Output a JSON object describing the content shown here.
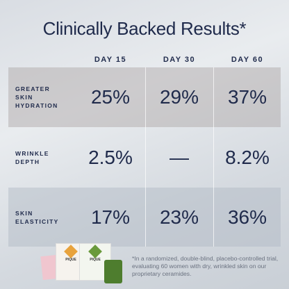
{
  "header": {
    "title": "Clinically Backed Results*"
  },
  "table": {
    "columns": [
      "DAY 15",
      "DAY 30",
      "DAY 60"
    ],
    "rows": [
      {
        "label": [
          "GREATER",
          "SKIN",
          "HYDRATION"
        ],
        "values": [
          "25%",
          "29%",
          "37%"
        ]
      },
      {
        "label": [
          "WRINKLE",
          "DEPTH"
        ],
        "values": [
          "2.5%",
          "—",
          "8.2%"
        ]
      },
      {
        "label": [
          "SKIN",
          "ELASTICITY"
        ],
        "values": [
          "17%",
          "23%",
          "36%"
        ]
      }
    ]
  },
  "product": {
    "brand": "PIQUE"
  },
  "footnote": "*In a randomized, double-blind, placebo-controlled trial, evaluating 60 women with dry, wrinkled skin on our proprietary ceramides."
}
